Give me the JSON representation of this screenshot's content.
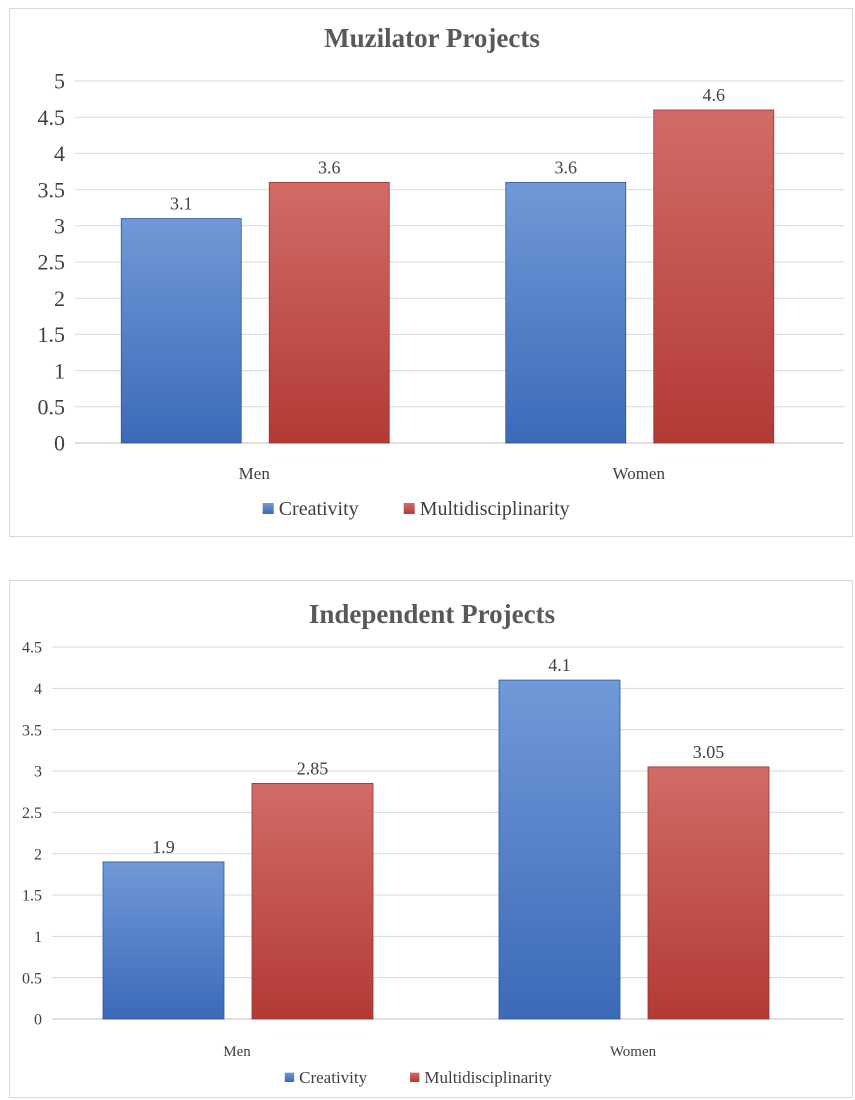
{
  "chart_data": [
    {
      "type": "bar",
      "title": "Muzilator Projects",
      "categories": [
        "Men",
        "Women"
      ],
      "series": [
        {
          "name": "Creativity",
          "values": [
            3.1,
            3.6
          ]
        },
        {
          "name": "Multidisciplinarity",
          "values": [
            3.6,
            4.6
          ]
        }
      ],
      "ylim": [
        0,
        5
      ],
      "ytick_step": 0.5,
      "yticks": [
        "0",
        "0.5",
        "1",
        "1.5",
        "2",
        "2.5",
        "3",
        "3.5",
        "4",
        "4.5",
        "5"
      ],
      "data_labels": [
        [
          "3.1",
          "3.6"
        ],
        [
          "3.6",
          "4.6"
        ]
      ],
      "grid": true,
      "legend": "bottom"
    },
    {
      "type": "bar",
      "title": "Independent Projects",
      "categories": [
        "Men",
        "Women"
      ],
      "series": [
        {
          "name": "Creativity",
          "values": [
            1.9,
            4.1
          ]
        },
        {
          "name": "Multidisciplinarity",
          "values": [
            2.85,
            3.05
          ]
        }
      ],
      "ylim": [
        0,
        4.5
      ],
      "ytick_step": 0.5,
      "yticks": [
        "0",
        "0.5",
        "1",
        "1.5",
        "2",
        "2.5",
        "3",
        "3.5",
        "4",
        "4.5"
      ],
      "data_labels": [
        [
          "1.9",
          "4.1"
        ],
        [
          "2.85",
          "3.05"
        ]
      ],
      "grid": true,
      "legend": "bottom"
    }
  ],
  "colors": {
    "series": [
      "#4472C4",
      "#C0504D"
    ],
    "grid": "#d9d9d9",
    "axis": "#bfbfbf"
  }
}
